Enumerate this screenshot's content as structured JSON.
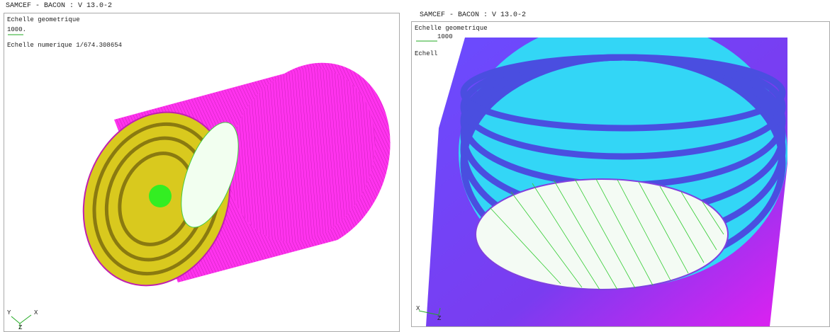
{
  "panels": [
    {
      "title": "SAMCEF - BACON : V 13.0-2",
      "scale_label": "Echelle geometrique",
      "scale_value": "1000.",
      "numeric_scale": "Echelle numerique 1/674.308654",
      "axes": [
        "Y",
        "X",
        "Z"
      ]
    },
    {
      "title": "SAMCEF - BACON : V 13.0-2",
      "scale_label": "Echelle geometrique",
      "scale_value": "1000",
      "numeric_scale": "Echell",
      "axes": [
        "X",
        "Z"
      ]
    }
  ]
}
